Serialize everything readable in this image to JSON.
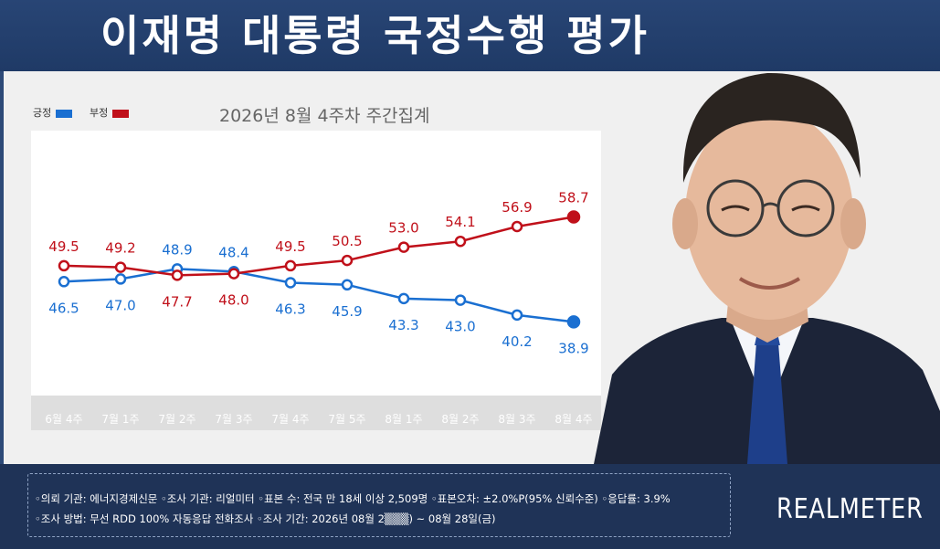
{
  "header": {
    "title": "이재명 대통령 국정수행 평가"
  },
  "legend": [
    {
      "label": "긍정",
      "color": "#1a6fd1"
    },
    {
      "label": "부정",
      "color": "#c0101a"
    }
  ],
  "chart_data": {
    "type": "line",
    "title": "2026년 8월 4주차 주간집계",
    "categories": [
      "6월 4주",
      "7월 1주",
      "7월 2주",
      "7월 3주",
      "7월 4주",
      "7월 5주",
      "8월 1주",
      "8월 2주",
      "8월 3주",
      "8월 4주"
    ],
    "series": [
      {
        "name": "긍정",
        "color": "#1a6fd1",
        "values": [
          46.5,
          47.0,
          48.9,
          48.4,
          46.3,
          45.9,
          43.3,
          43.0,
          40.2,
          38.9
        ]
      },
      {
        "name": "부정",
        "color": "#c0101a",
        "values": [
          49.5,
          49.2,
          47.7,
          48.0,
          49.5,
          50.5,
          53.0,
          54.1,
          56.9,
          58.7
        ]
      }
    ],
    "xlabel": "",
    "ylabel": "",
    "ylim": [
      25,
      75
    ],
    "grid": false,
    "legend_position": "top-left"
  },
  "notes": {
    "line1": "◦의뢰 기관: 에너지경제신문  ◦조사 기관: 리얼미터  ◦표본 수: 전국 만 18세 이상 2,509명  ◦표본오차: ±2.0%P(95% 신뢰수준)  ◦응답률: 3.9%",
    "line2": "◦조사 방법: 무선 RDD 100% 자동응답 전화조사  ◦조사 기간: 2026년 08월 2▒▒▒) ~ 08월 28일(금)"
  },
  "brand": "REALMETER"
}
